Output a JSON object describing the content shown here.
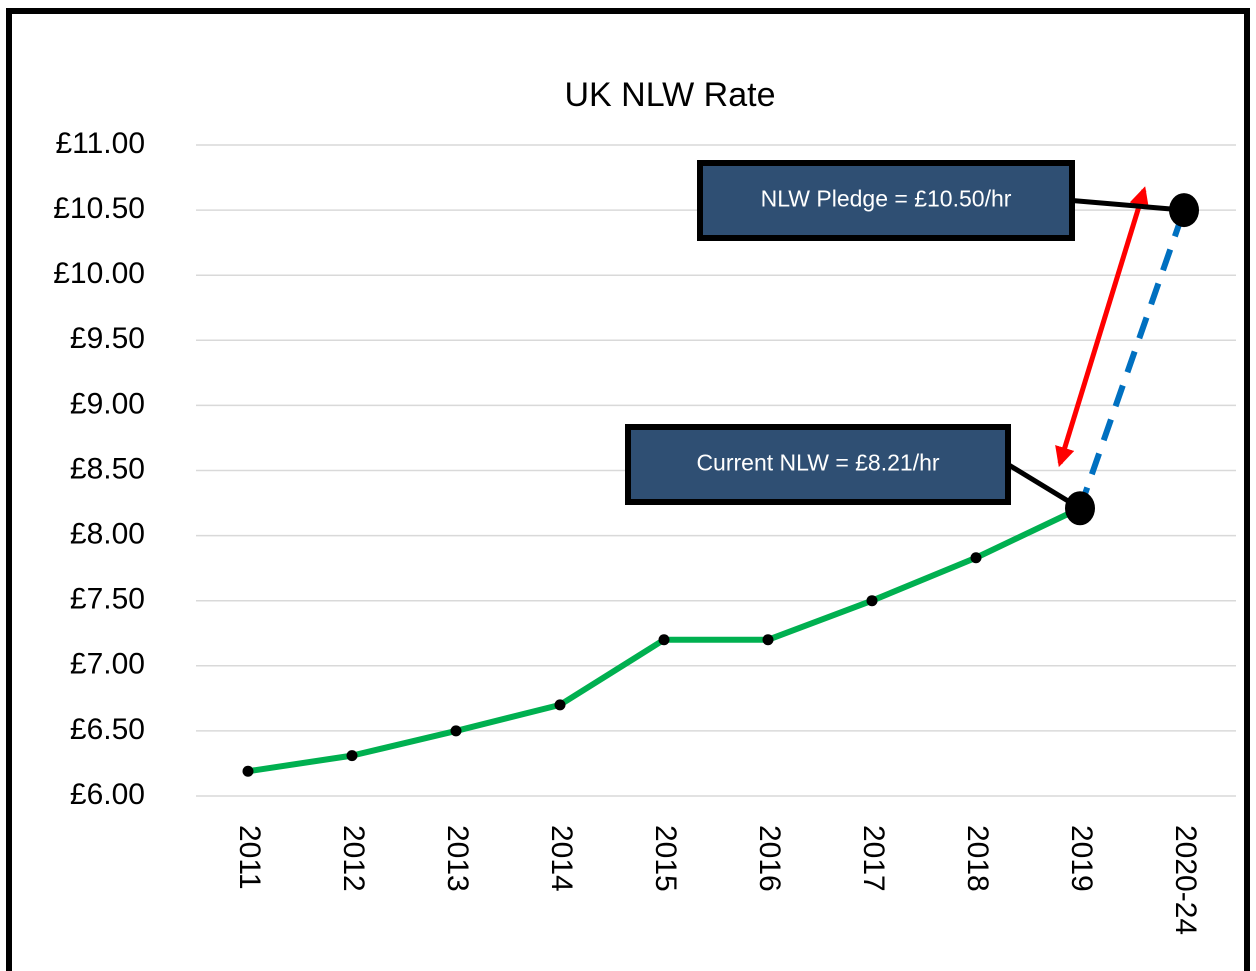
{
  "chart_data": {
    "type": "line",
    "title": "UK NLW Rate",
    "categories": [
      "2011",
      "2012",
      "2013",
      "2014",
      "2015",
      "2016",
      "2017",
      "2018",
      "2019",
      "2020-24"
    ],
    "series": [
      {
        "color": "#00b050",
        "values": [
          6.19,
          6.31,
          6.5,
          6.7,
          7.2,
          7.2,
          7.5,
          7.83,
          8.21,
          null
        ]
      },
      {
        "color": "#0070c0",
        "dashed": true,
        "values": [
          null,
          null,
          null,
          null,
          null,
          null,
          null,
          null,
          8.21,
          10.5
        ]
      }
    ],
    "annotations": [
      {
        "text": "Current NLW = £8.21/hr",
        "series": 1,
        "index": 8
      },
      {
        "text": "NLW Pledge = £10.50/hr",
        "series": 1,
        "index": 9
      }
    ],
    "ylim": [
      6,
      11
    ],
    "yticks": [
      {
        "value": 6,
        "label": "£6.00"
      },
      {
        "value": 6.5,
        "label": "£6.50"
      },
      {
        "value": 7,
        "label": "£7.00"
      },
      {
        "value": 7.5,
        "label": "£7.50"
      },
      {
        "value": 8,
        "label": "£8.00"
      },
      {
        "value": 8.5,
        "label": "£8.50"
      },
      {
        "value": 9,
        "label": "£9.00"
      },
      {
        "value": 9.5,
        "label": "£9.50"
      },
      {
        "value": 10,
        "label": "£10.00"
      },
      {
        "value": 10.5,
        "label": "£10.50"
      },
      {
        "value": 11,
        "label": "£11.00"
      }
    ],
    "grid": true
  }
}
